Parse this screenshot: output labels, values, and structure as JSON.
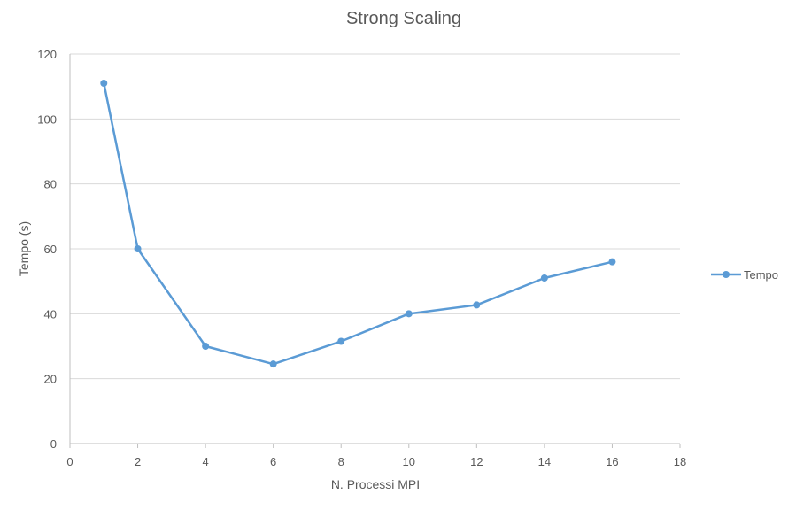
{
  "chart_data": {
    "type": "line",
    "title": "Strong Scaling",
    "xlabel": "N. Processi MPI",
    "ylabel": "Tempo (s)",
    "xlim": [
      0,
      18
    ],
    "ylim": [
      0,
      120
    ],
    "xticks": [
      0,
      2,
      4,
      6,
      8,
      10,
      12,
      14,
      16,
      18
    ],
    "yticks": [
      0,
      20,
      40,
      60,
      80,
      100,
      120
    ],
    "grid": "horizontal",
    "legend_position": "right",
    "series": [
      {
        "name": "Tempo",
        "color": "#5b9bd5",
        "x": [
          1,
          2,
          4,
          6,
          8,
          10,
          12,
          14,
          16
        ],
        "y": [
          111,
          60,
          30,
          24.5,
          31.5,
          40,
          42.7,
          51,
          56
        ]
      }
    ]
  }
}
